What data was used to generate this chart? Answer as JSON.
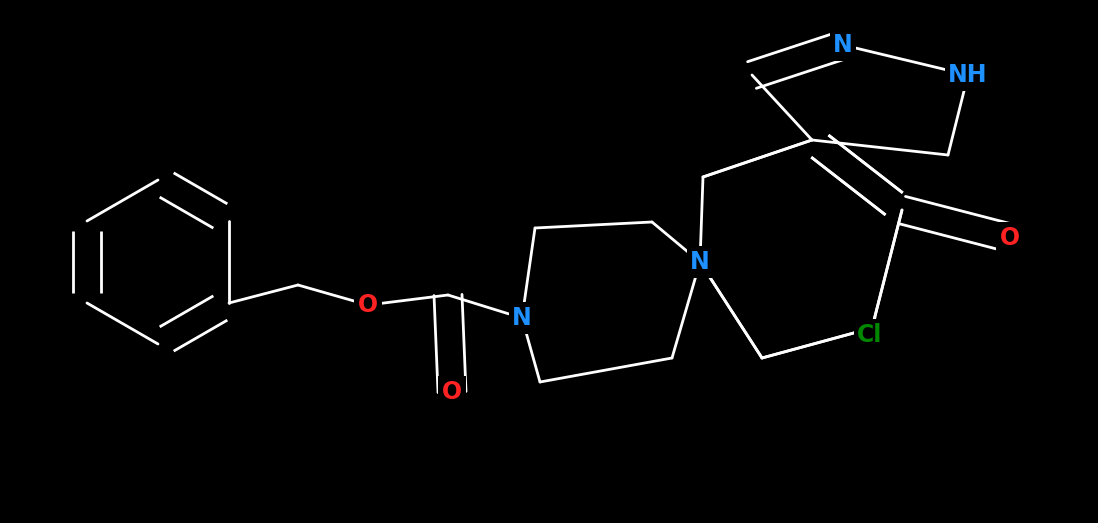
{
  "bg": "#000000",
  "fw": 10.98,
  "fh": 5.23,
  "dpi": 100,
  "C": "#ffffff",
  "N": "#1e90ff",
  "O": "#ff2222",
  "Cl": "#008800",
  "lw": 2.0,
  "sep": 0.055
}
